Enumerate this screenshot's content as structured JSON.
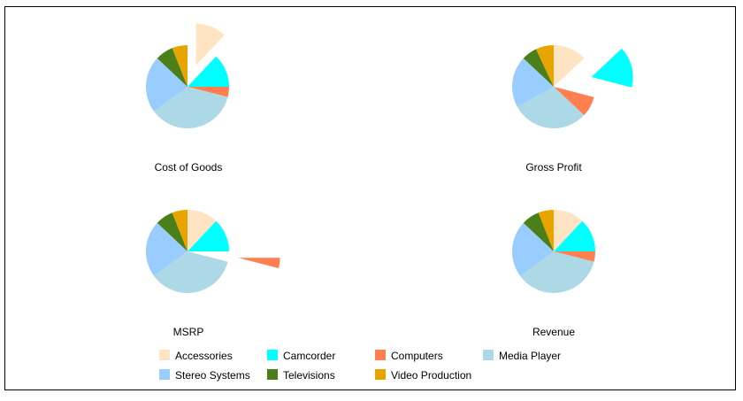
{
  "chart_data": {
    "type": "pie",
    "categories": [
      "Accessories",
      "Camcorder",
      "Computers",
      "Media Player",
      "Stereo Systems",
      "Televisions",
      "Video Production"
    ],
    "colors": [
      "#FFE4C4",
      "#00FFFF",
      "#FF7F50",
      "#ADD8E6",
      "#99CCFF",
      "#4B7F19",
      "#E8A400"
    ],
    "pies": [
      {
        "title": "Cost of Goods",
        "values": [
          12,
          13,
          4,
          36,
          22,
          7,
          6
        ],
        "exploded": "Accessories"
      },
      {
        "title": "Gross Profit",
        "values": [
          13,
          16,
          8,
          30,
          20,
          6,
          7
        ],
        "exploded": "Camcorder"
      },
      {
        "title": "MSRP",
        "values": [
          12,
          13,
          4,
          36,
          22,
          7,
          6
        ],
        "exploded": "Computers"
      },
      {
        "title": "Revenue",
        "values": [
          12,
          13,
          4,
          36,
          22,
          7,
          6
        ],
        "exploded": ""
      }
    ],
    "legend": {
      "position": "bottom",
      "items": [
        "Accessories",
        "Camcorder",
        "Computers",
        "Media Player",
        "Stereo Systems",
        "Televisions",
        "Video Production"
      ]
    }
  }
}
